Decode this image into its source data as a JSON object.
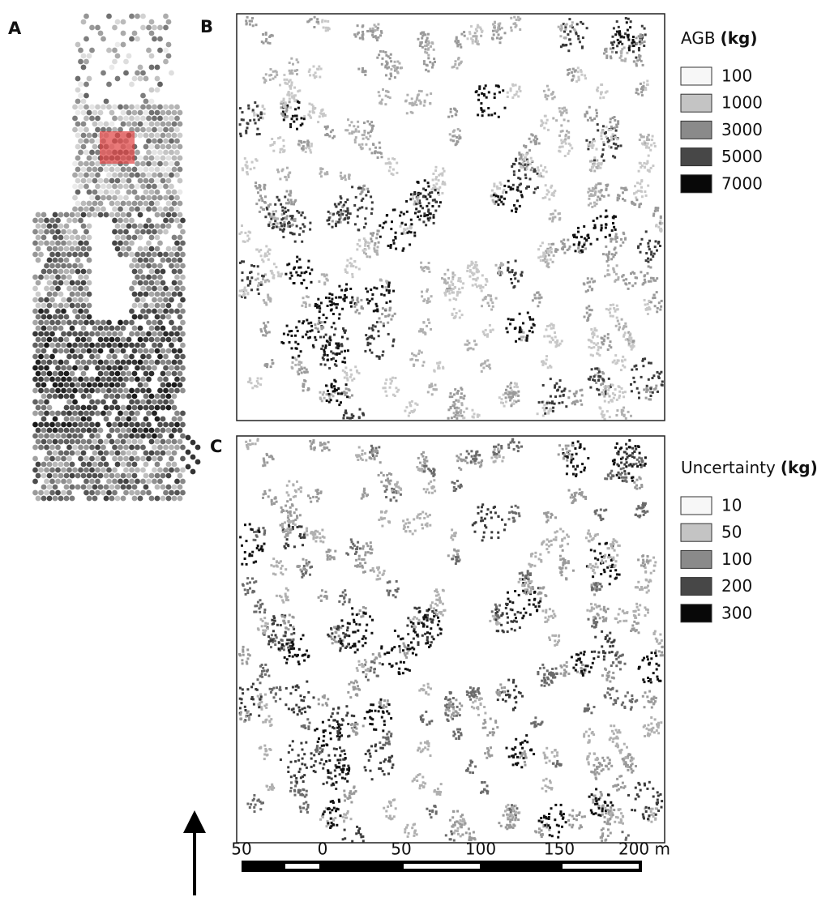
{
  "panels": [
    {
      "label": "A"
    },
    {
      "label": "B"
    },
    {
      "label": "C"
    }
  ],
  "legends": [
    {
      "title": "AGB",
      "unit": "(kg)",
      "items": [
        {
          "label": "100",
          "color": "#f7f7f7"
        },
        {
          "label": "1000",
          "color": "#c4c4c4"
        },
        {
          "label": "3000",
          "color": "#8a8a8a"
        },
        {
          "label": "5000",
          "color": "#474747"
        },
        {
          "label": "7000",
          "color": "#080808"
        }
      ]
    },
    {
      "title": "Uncertainty",
      "unit": "(kg)",
      "items": [
        {
          "label": "10",
          "color": "#f7f7f7"
        },
        {
          "label": "50",
          "color": "#c4c4c4"
        },
        {
          "label": "100",
          "color": "#8a8a8a"
        },
        {
          "label": "200",
          "color": "#474747"
        },
        {
          "label": "300",
          "color": "#080808"
        }
      ]
    }
  ],
  "scale_bar": {
    "labels": [
      "50",
      "0",
      "50",
      "100",
      "150",
      "200 m"
    ]
  }
}
